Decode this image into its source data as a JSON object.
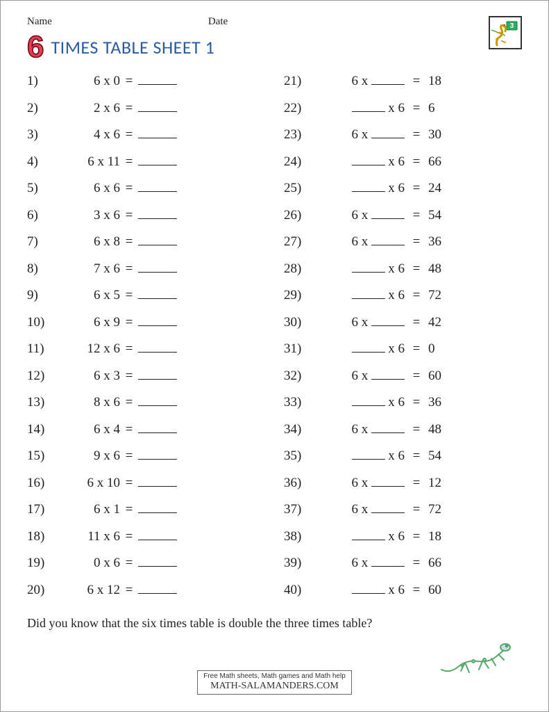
{
  "header": {
    "name_label": "Name",
    "date_label": "Date"
  },
  "title": {
    "big_number": "6",
    "text": "TIMES TABLE SHEET 1",
    "number_color": "#e04050",
    "number_stroke": "#6a0010",
    "title_color": "#2a5aa0"
  },
  "style": {
    "text_color": "#222222",
    "font_size": 19,
    "row_height": 38.5,
    "blank_width": 56
  },
  "columns": [
    {
      "type": "solve_product",
      "problems": [
        {
          "n": "1)",
          "a": "6",
          "b": "0"
        },
        {
          "n": "2)",
          "a": "2",
          "b": "6"
        },
        {
          "n": "3)",
          "a": "4",
          "b": "6"
        },
        {
          "n": "4)",
          "a": "6",
          "b": "11"
        },
        {
          "n": "5)",
          "a": "6",
          "b": "6"
        },
        {
          "n": "6)",
          "a": "3",
          "b": "6"
        },
        {
          "n": "7)",
          "a": "6",
          "b": "8"
        },
        {
          "n": "8)",
          "a": "7",
          "b": "6"
        },
        {
          "n": "9)",
          "a": "6",
          "b": "5"
        },
        {
          "n": "10)",
          "a": "6",
          "b": "9"
        },
        {
          "n": "11)",
          "a": "12",
          "b": "6"
        },
        {
          "n": "12)",
          "a": "6",
          "b": "3"
        },
        {
          "n": "13)",
          "a": "8",
          "b": "6"
        },
        {
          "n": "14)",
          "a": "6",
          "b": "4"
        },
        {
          "n": "15)",
          "a": "9",
          "b": "6"
        },
        {
          "n": "16)",
          "a": "6",
          "b": "10"
        },
        {
          "n": "17)",
          "a": "6",
          "b": "1"
        },
        {
          "n": "18)",
          "a": "11",
          "b": "6"
        },
        {
          "n": "19)",
          "a": "0",
          "b": "6"
        },
        {
          "n": "20)",
          "a": "6",
          "b": "12"
        }
      ]
    },
    {
      "type": "solve_factor",
      "problems": [
        {
          "n": "21)",
          "blank_pos": "right",
          "known": "6",
          "ans": "18"
        },
        {
          "n": "22)",
          "blank_pos": "left",
          "known": "6",
          "ans": "6"
        },
        {
          "n": "23)",
          "blank_pos": "right",
          "known": "6",
          "ans": "30"
        },
        {
          "n": "24)",
          "blank_pos": "left",
          "known": "6",
          "ans": "66"
        },
        {
          "n": "25)",
          "blank_pos": "left",
          "known": "6",
          "ans": "24"
        },
        {
          "n": "26)",
          "blank_pos": "right",
          "known": "6",
          "ans": "54"
        },
        {
          "n": "27)",
          "blank_pos": "right",
          "known": "6",
          "ans": "36"
        },
        {
          "n": "28)",
          "blank_pos": "left",
          "known": "6",
          "ans": "48"
        },
        {
          "n": "29)",
          "blank_pos": "left",
          "known": "6",
          "ans": "72"
        },
        {
          "n": "30)",
          "blank_pos": "right",
          "known": "6",
          "ans": "42"
        },
        {
          "n": "31)",
          "blank_pos": "left",
          "known": "6",
          "ans": "0"
        },
        {
          "n": "32)",
          "blank_pos": "right",
          "known": "6",
          "ans": "60"
        },
        {
          "n": "33)",
          "blank_pos": "left",
          "known": "6",
          "ans": "36"
        },
        {
          "n": "34)",
          "blank_pos": "right",
          "known": "6",
          "ans": "48"
        },
        {
          "n": "35)",
          "blank_pos": "left",
          "known": "6",
          "ans": "54"
        },
        {
          "n": "36)",
          "blank_pos": "right",
          "known": "6",
          "ans": "12"
        },
        {
          "n": "37)",
          "blank_pos": "right",
          "known": "6",
          "ans": "72"
        },
        {
          "n": "38)",
          "blank_pos": "left",
          "known": "6",
          "ans": "18"
        },
        {
          "n": "39)",
          "blank_pos": "right",
          "known": "6",
          "ans": "66"
        },
        {
          "n": "40)",
          "blank_pos": "left",
          "known": "6",
          "ans": "60"
        }
      ]
    }
  ],
  "factoid": "Did you know that the six times table is double the three times table?",
  "footer": {
    "line1": "Free Math sheets, Math games and Math help",
    "site": "MATH-SALAMANDERS.COM"
  },
  "logo": {
    "grade": "3"
  }
}
